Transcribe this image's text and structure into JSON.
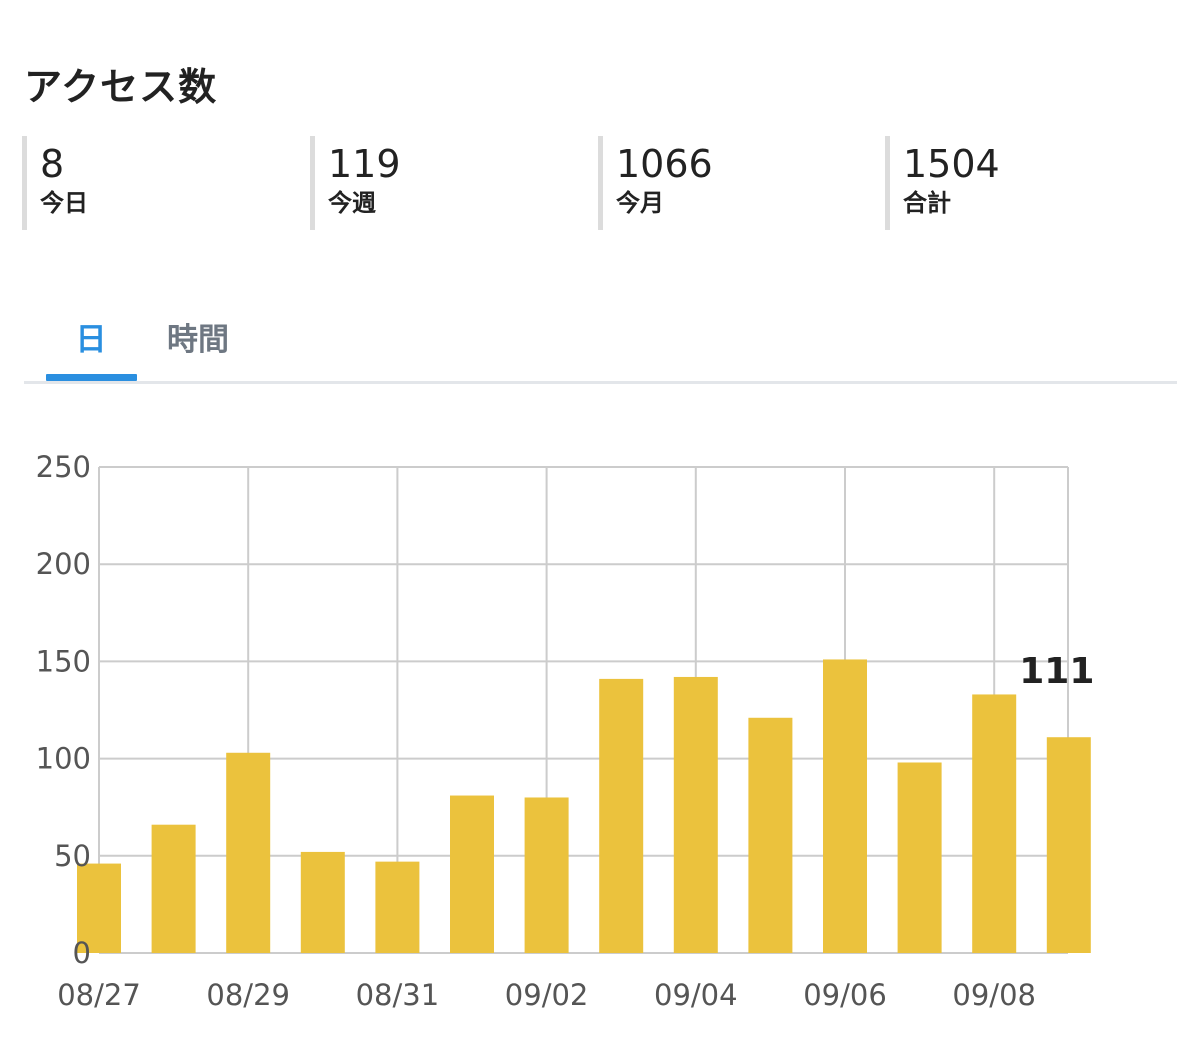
{
  "header": {
    "title": "アクセス数"
  },
  "stats": [
    {
      "value": "8",
      "label": "今日"
    },
    {
      "value": "119",
      "label": "今週"
    },
    {
      "value": "1066",
      "label": "今月"
    },
    {
      "value": "1504",
      "label": "合計"
    }
  ],
  "tabs": [
    {
      "label": "日",
      "active": true
    },
    {
      "label": "時間",
      "active": false
    }
  ],
  "colors": {
    "bar": "#EBC23D",
    "accent": "#2A8FE0",
    "grid": "#CCCCCC"
  },
  "chart_data": {
    "type": "bar",
    "categories": [
      "08/27",
      "08/28",
      "08/29",
      "08/30",
      "08/31",
      "09/01",
      "09/02",
      "09/03",
      "09/04",
      "09/05",
      "09/06",
      "09/07",
      "09/08",
      "09/09"
    ],
    "values": [
      46,
      66,
      103,
      52,
      47,
      81,
      80,
      141,
      142,
      121,
      151,
      98,
      133,
      111
    ],
    "x_tick_labels": [
      "08/27",
      "08/29",
      "08/31",
      "09/02",
      "09/04",
      "09/06",
      "09/08"
    ],
    "y_ticks": [
      0,
      50,
      100,
      150,
      200,
      250
    ],
    "ylim": [
      0,
      250
    ],
    "data_labels": [
      {
        "category": "09/09",
        "text": "111"
      }
    ],
    "grid": true,
    "title": "",
    "xlabel": "",
    "ylabel": ""
  }
}
